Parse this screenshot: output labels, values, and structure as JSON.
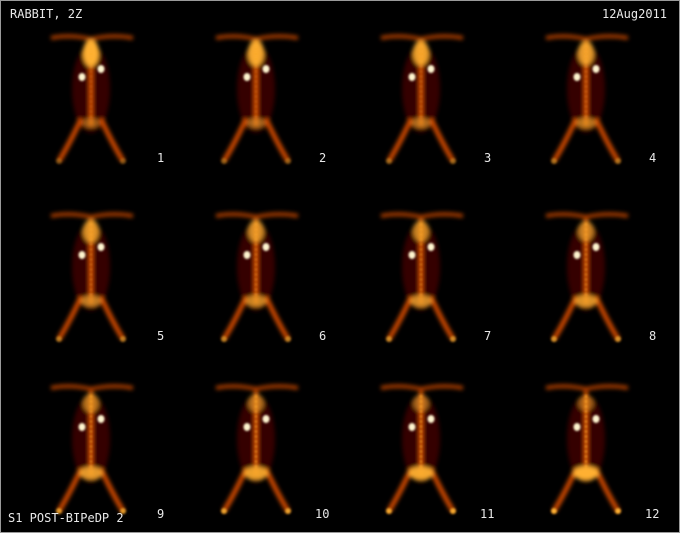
{
  "header": {
    "title": "RABBIT, 2Z",
    "date": "12Aug2011"
  },
  "footer": {
    "series_label": "S1 POST-BIPeDP 2"
  },
  "colormap": {
    "low": "#3a0500",
    "mid": "#d04a00",
    "high": "#ffb030",
    "peak": "#fff6d0"
  },
  "frames": [
    {
      "number": "1"
    },
    {
      "number": "2"
    },
    {
      "number": "3"
    },
    {
      "number": "4"
    },
    {
      "number": "5"
    },
    {
      "number": "6"
    },
    {
      "number": "7"
    },
    {
      "number": "8"
    },
    {
      "number": "9"
    },
    {
      "number": "10"
    },
    {
      "number": "11"
    },
    {
      "number": "12"
    }
  ]
}
